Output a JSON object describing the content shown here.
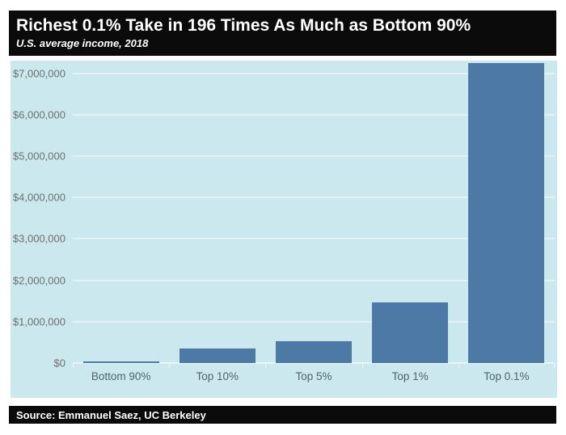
{
  "colors": {
    "header_bg": "#0b0b0b",
    "header_text": "#ffffff",
    "chart_bg": "#cbe8ee",
    "bar": "#4d79a7",
    "gridline": "#e2f2f5",
    "y_label": "#6e6e6e",
    "x_label": "#53626c",
    "footer_bg": "#0b0b0b",
    "footer_text": "#ffffff"
  },
  "chart_data": {
    "type": "bar",
    "title": "Richest 0.1% Take in 196 Times As Much as Bottom 90%",
    "subtitle": "U.S. average income, 2018",
    "source": "Source: Emmanuel Saez, UC Berkeley",
    "categories": [
      "Bottom 90%",
      "Top 10%",
      "Top 5%",
      "Top 1%",
      "Top 0.1%"
    ],
    "values": [
      37000,
      350000,
      530000,
      1460000,
      7252000
    ],
    "unit": "USD",
    "xlabel": "",
    "ylabel": "",
    "ylim": [
      0,
      7300000
    ],
    "grid": "horizontal",
    "legend": "none",
    "yticks": [
      {
        "value": 0,
        "label": "$0"
      },
      {
        "value": 1000000,
        "label": "$1,000,000"
      },
      {
        "value": 2000000,
        "label": "$2,000,000"
      },
      {
        "value": 3000000,
        "label": "$3,000,000"
      },
      {
        "value": 4000000,
        "label": "$4,000,000"
      },
      {
        "value": 5000000,
        "label": "$5,000,000"
      },
      {
        "value": 6000000,
        "label": "$6,000,000"
      },
      {
        "value": 7000000,
        "label": "$7,000,000"
      }
    ]
  }
}
